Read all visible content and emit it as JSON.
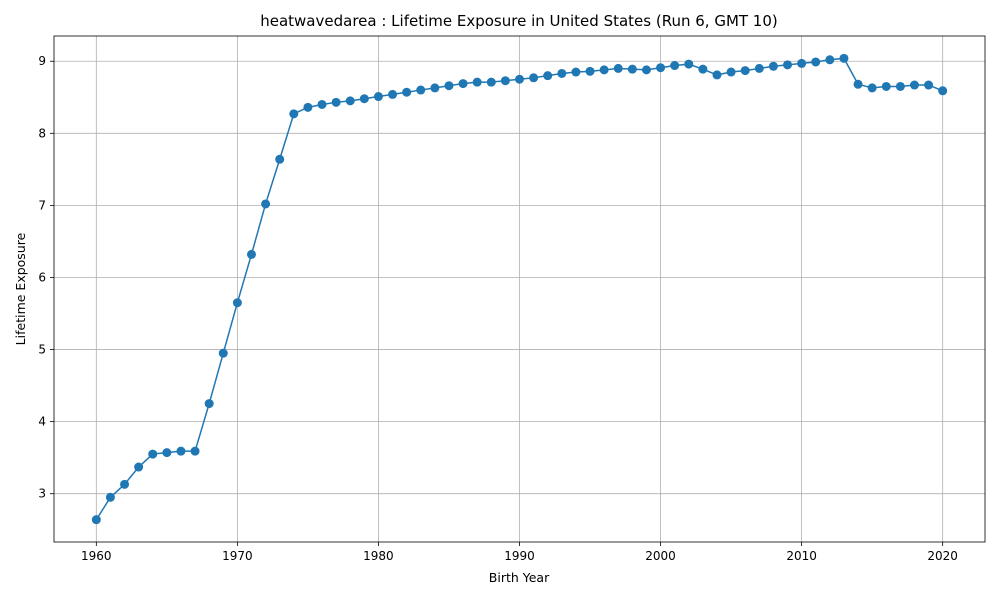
{
  "chart_data": {
    "type": "line",
    "title": "heatwavedarea : Lifetime Exposure in United States (Run 6, GMT 10)",
    "xlabel": "Birth Year",
    "ylabel": "Lifetime Exposure",
    "xlim": [
      1957,
      2023
    ],
    "ylim": [
      2.33,
      9.35
    ],
    "xticks": [
      1960,
      1970,
      1980,
      1990,
      2000,
      2010,
      2020
    ],
    "yticks": [
      3,
      4,
      5,
      6,
      7,
      8,
      9
    ],
    "grid": true,
    "color": "#1f77b4",
    "marker": "circle",
    "series": [
      {
        "x": [
          1960,
          1961,
          1962,
          1963,
          1964,
          1965,
          1966,
          1967,
          1968,
          1969,
          1970,
          1971,
          1972,
          1973,
          1974,
          1975,
          1976,
          1977,
          1978,
          1979,
          1980,
          1981,
          1982,
          1983,
          1984,
          1985,
          1986,
          1987,
          1988,
          1989,
          1990,
          1991,
          1992,
          1993,
          1994,
          1995,
          1996,
          1997,
          1998,
          1999,
          2000,
          2001,
          2002,
          2003,
          2004,
          2005,
          2006,
          2007,
          2008,
          2009,
          2010,
          2011,
          2012,
          2013,
          2014,
          2015,
          2016,
          2017,
          2018,
          2019,
          2020
        ],
        "y": [
          2.64,
          2.95,
          3.13,
          3.37,
          3.55,
          3.57,
          3.59,
          3.59,
          4.25,
          4.95,
          5.65,
          6.32,
          7.02,
          7.64,
          8.27,
          8.36,
          8.4,
          8.43,
          8.45,
          8.48,
          8.51,
          8.54,
          8.57,
          8.6,
          8.63,
          8.66,
          8.69,
          8.71,
          8.71,
          8.73,
          8.75,
          8.77,
          8.8,
          8.83,
          8.85,
          8.86,
          8.88,
          8.9,
          8.89,
          8.88,
          8.91,
          8.94,
          8.96,
          8.89,
          8.81,
          8.85,
          8.87,
          8.9,
          8.93,
          8.95,
          8.97,
          8.99,
          9.02,
          9.04,
          8.68,
          8.63,
          8.65,
          8.65,
          8.67,
          8.67,
          8.59
        ]
      }
    ]
  }
}
